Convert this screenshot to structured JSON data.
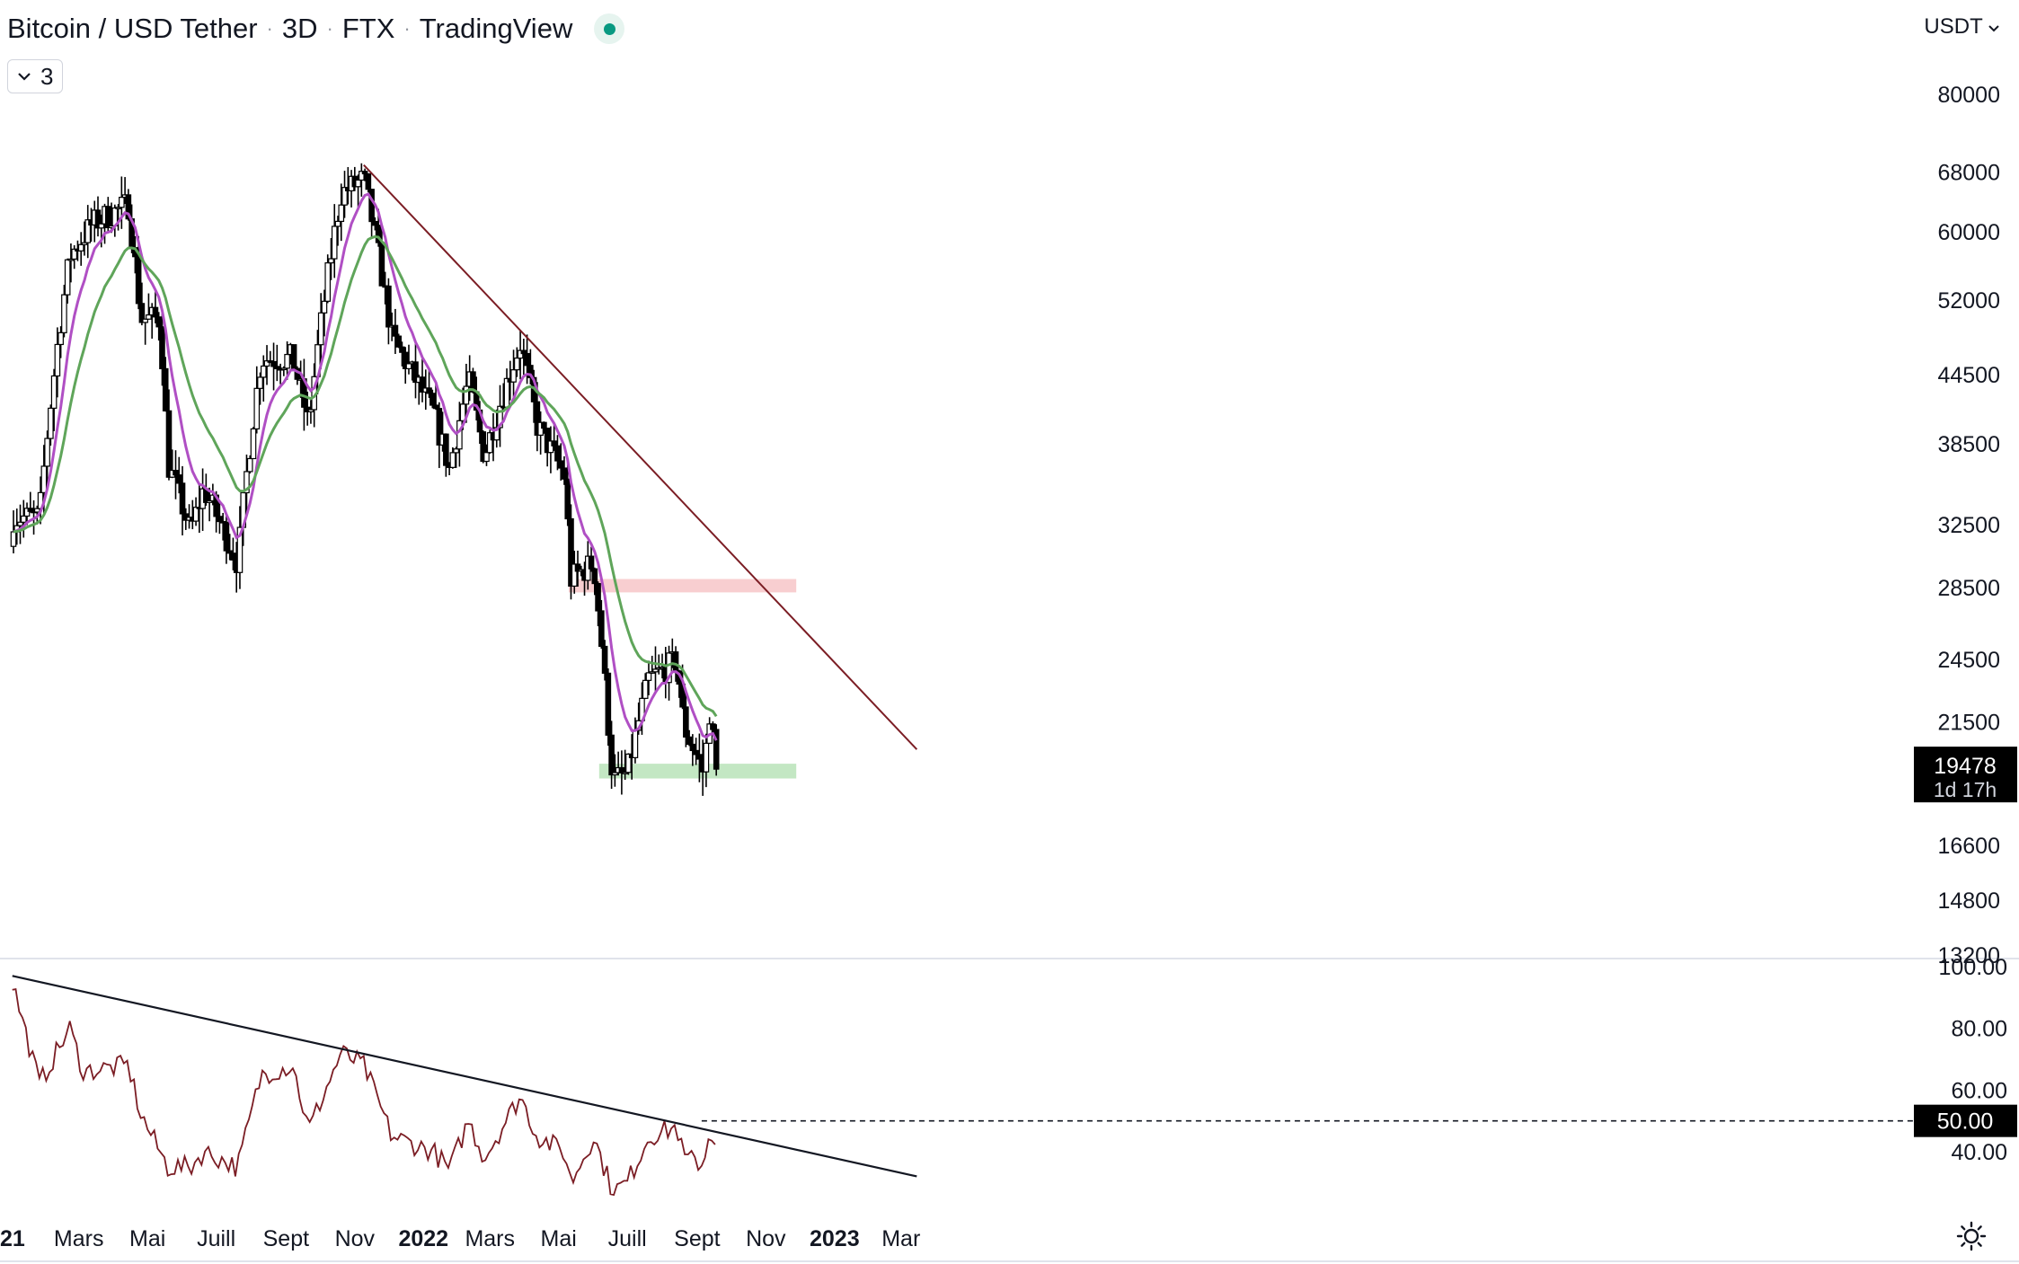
{
  "header": {
    "symbol": "Bitcoin / USD Tether",
    "interval": "3D",
    "exchange": "FTX",
    "source": "TradingView",
    "status_color": "#089981"
  },
  "indicator_toggle": {
    "count": "3",
    "icon": "chevron-down-icon"
  },
  "price_axis": {
    "currency": "USDT",
    "ticks": [
      "80000",
      "68000",
      "60000",
      "52000",
      "44500",
      "38500",
      "32500",
      "28500",
      "24500",
      "21500",
      "16600",
      "14800",
      "13200"
    ],
    "last_price": "19478",
    "countdown": "1d 17h"
  },
  "time_axis": {
    "labels": [
      "21",
      "Mars",
      "Mai",
      "Juill",
      "Sept",
      "Nov",
      "2022",
      "Mars",
      "Mai",
      "Juill",
      "Sept",
      "Nov",
      "2023",
      "Mar"
    ]
  },
  "rsi_axis": {
    "ticks": [
      "100.00",
      "80.00",
      "60.00",
      "40.00"
    ],
    "level_label": "50.00"
  },
  "colors": {
    "candle": "#000000",
    "ema_fast": "#b04fc4",
    "ema_slow": "#5fa55a",
    "trendline": "#7b1d24",
    "rsi": "#7b1d24",
    "resistance_zone": "#f7c5c8",
    "support_zone": "#b9e3b8"
  },
  "chart_data": [
    {
      "type": "candlestick",
      "scale": "log",
      "ylim": [
        13200,
        80000
      ],
      "xlabels": [
        "21",
        "Mars",
        "Mai",
        "Juill",
        "Sept",
        "Nov",
        "2022",
        "Mars",
        "Mai",
        "Juill",
        "Sept",
        "Nov",
        "2023",
        "Mar"
      ],
      "close_anchors": [
        [
          "2021-01-25",
          33000
        ],
        [
          "2021-02-21",
          57000
        ],
        [
          "2021-03-13",
          61000
        ],
        [
          "2021-04-14",
          63500
        ],
        [
          "2021-04-25",
          50000
        ],
        [
          "2021-05-12",
          50000
        ],
        [
          "2021-05-19",
          37000
        ],
        [
          "2021-06-08",
          32000
        ],
        [
          "2021-06-20",
          35000
        ],
        [
          "2021-07-20",
          30000
        ],
        [
          "2021-08-10",
          46000
        ],
        [
          "2021-09-07",
          46000
        ],
        [
          "2021-09-21",
          40000
        ],
        [
          "2021-10-20",
          65000
        ],
        [
          "2021-11-09",
          67000
        ],
        [
          "2021-12-04",
          48000
        ],
        [
          "2022-01-10",
          41000
        ],
        [
          "2022-01-24",
          36500
        ],
        [
          "2022-02-10",
          44000
        ],
        [
          "2022-02-24",
          37500
        ],
        [
          "2022-03-28",
          47500
        ],
        [
          "2022-04-12",
          40000
        ],
        [
          "2022-05-06",
          36000
        ],
        [
          "2022-05-12",
          29000
        ],
        [
          "2022-06-01",
          30000
        ],
        [
          "2022-06-13",
          22000
        ],
        [
          "2022-06-18",
          19000
        ],
        [
          "2022-07-01",
          19300
        ],
        [
          "2022-07-20",
          23500
        ],
        [
          "2022-08-14",
          24400
        ],
        [
          "2022-08-20",
          21300
        ],
        [
          "2022-09-07",
          19300
        ],
        [
          "2022-09-12",
          22000
        ],
        [
          "2022-09-18",
          19478
        ]
      ],
      "series": [
        {
          "name": "",
          "kind": "candles",
          "last": 19478
        },
        {
          "name": "",
          "kind": "ema",
          "period": 9
        },
        {
          "name": "",
          "kind": "ema",
          "period": 21
        }
      ],
      "trendline": [
        [
          "2021-11-09",
          69000
        ],
        [
          "2023-03-15",
          20300
        ]
      ],
      "resistance_zone": {
        "from": "2022-05-10",
        "to": "2022-11-28",
        "low": 28200,
        "high": 29000
      },
      "support_zone": {
        "from": "2022-06-06",
        "to": "2022-11-28",
        "low": 19100,
        "high": 19700
      },
      "last_value": 19478
    },
    {
      "type": "line",
      "ylim": [
        30,
        100
      ],
      "ticks": [
        100,
        80,
        60,
        40
      ],
      "level": 50,
      "rsi_anchors": [
        [
          "2021-01-01",
          95
        ],
        [
          "2021-01-25",
          62
        ],
        [
          "2021-02-21",
          80
        ],
        [
          "2021-03-05",
          66
        ],
        [
          "2021-04-14",
          68
        ],
        [
          "2021-04-25",
          52
        ],
        [
          "2021-05-19",
          35
        ],
        [
          "2021-06-08",
          35
        ],
        [
          "2021-06-20",
          40
        ],
        [
          "2021-07-20",
          35
        ],
        [
          "2021-08-10",
          65
        ],
        [
          "2021-09-07",
          68
        ],
        [
          "2021-09-21",
          47
        ],
        [
          "2021-10-20",
          72
        ],
        [
          "2021-11-09",
          68
        ],
        [
          "2021-12-04",
          45
        ],
        [
          "2022-01-10",
          40
        ],
        [
          "2022-01-24",
          34
        ],
        [
          "2022-02-10",
          50
        ],
        [
          "2022-02-24",
          38
        ],
        [
          "2022-03-28",
          58
        ],
        [
          "2022-04-12",
          45
        ],
        [
          "2022-05-06",
          40
        ],
        [
          "2022-05-12",
          30
        ],
        [
          "2022-06-01",
          45
        ],
        [
          "2022-06-18",
          27
        ],
        [
          "2022-07-01",
          30
        ],
        [
          "2022-07-20",
          45
        ],
        [
          "2022-08-14",
          48
        ],
        [
          "2022-08-20",
          38
        ],
        [
          "2022-09-07",
          36
        ],
        [
          "2022-09-12",
          48
        ],
        [
          "2022-09-18",
          42
        ]
      ],
      "trendline": [
        [
          "2021-01-01",
          97
        ],
        [
          "2023-03-15",
          32
        ]
      ],
      "level_line_from": "2022-09-05"
    }
  ]
}
